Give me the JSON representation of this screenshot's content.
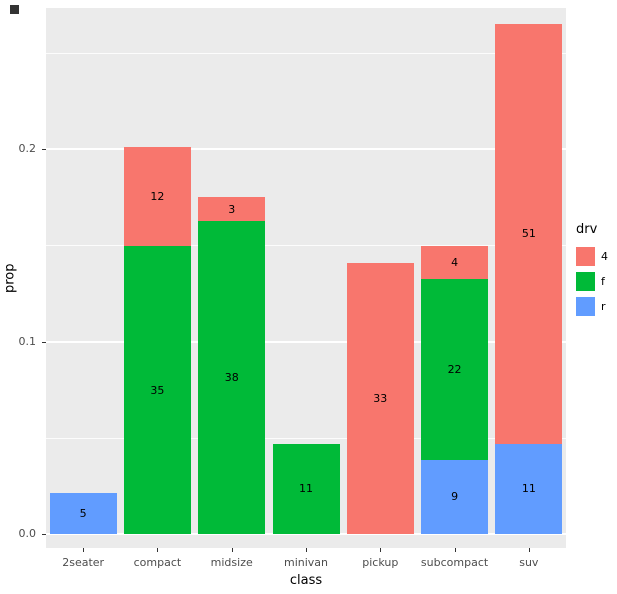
{
  "chart_data": {
    "type": "bar",
    "stacked": true,
    "title": "",
    "xlabel": "class",
    "ylabel": "prop",
    "categories": [
      "2seater",
      "compact",
      "midsize",
      "minivan",
      "pickup",
      "subcompact",
      "suv"
    ],
    "series": [
      {
        "name": "4",
        "color": "#F8766D",
        "values": [
          0,
          12,
          3,
          0,
          33,
          4,
          51
        ]
      },
      {
        "name": "f",
        "color": "#00BA38",
        "values": [
          0,
          35,
          38,
          11,
          0,
          22,
          0
        ]
      },
      {
        "name": "r",
        "color": "#619CFF",
        "values": [
          5,
          0,
          0,
          0,
          0,
          9,
          11
        ]
      }
    ],
    "bar_labels_show_counts": true,
    "y_ticks": [
      "0.0",
      "0.1",
      "0.2"
    ],
    "y_tick_values": [
      0.0,
      0.1,
      0.2
    ],
    "minor_tick_values": [
      0.05,
      0.15,
      0.25
    ],
    "ylim": [
      0,
      0.273
    ],
    "grid": "on",
    "panel_bg": "#EBEBEB",
    "grid_color": "#FFFFFF",
    "legend": {
      "title": "drv",
      "position": "right",
      "entries": [
        {
          "label": "4",
          "color": "#F8766D"
        },
        {
          "label": "f",
          "color": "#00BA38"
        },
        {
          "label": "r",
          "color": "#619CFF"
        }
      ]
    }
  }
}
